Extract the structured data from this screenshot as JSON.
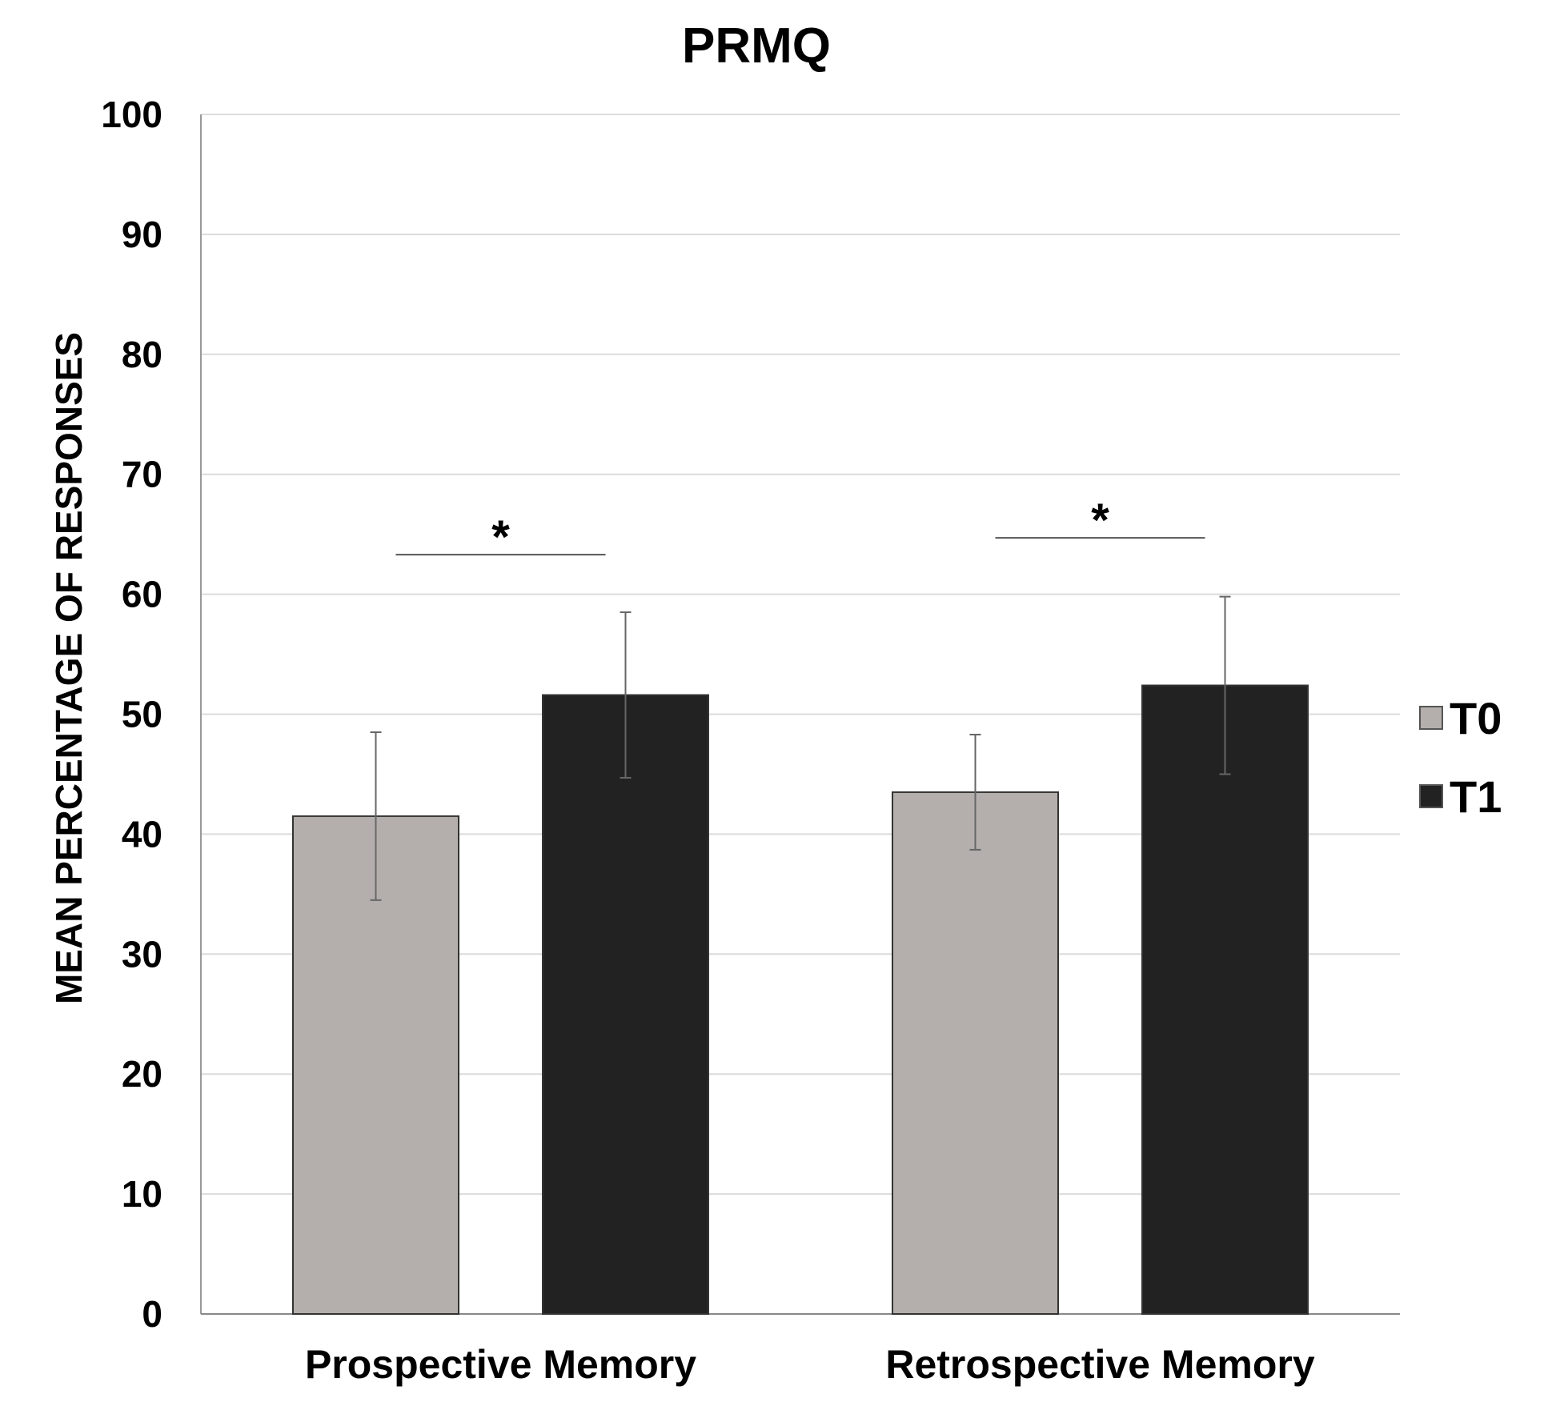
{
  "chart_data": {
    "type": "bar",
    "title": "PRMQ",
    "xlabel": "",
    "ylabel": "MEAN PERCENTAGE OF RESPONSES",
    "categories": [
      "Prospective Memory",
      "Retrospective Memory"
    ],
    "ylim": [
      0,
      100
    ],
    "yticks": [
      0,
      10,
      20,
      30,
      40,
      50,
      60,
      70,
      80,
      90,
      100
    ],
    "grid": true,
    "legend_position": "right",
    "series": [
      {
        "name": "T0",
        "color": "#b4afac",
        "values": [
          41.5,
          43.5
        ],
        "error": [
          7.0,
          4.8
        ]
      },
      {
        "name": "T1",
        "color": "#222222",
        "values": [
          51.6,
          52.4
        ],
        "error": [
          6.9,
          7.4
        ]
      }
    ],
    "annotations": [
      {
        "text": "*",
        "category": "Prospective Memory",
        "y": 63.3
      },
      {
        "text": "*",
        "category": "Retrospective Memory",
        "y": 64.7
      }
    ]
  }
}
